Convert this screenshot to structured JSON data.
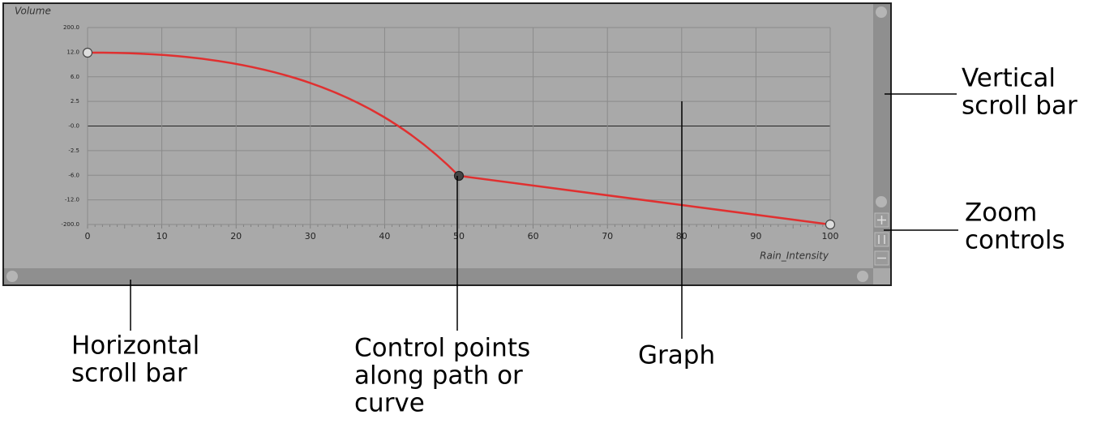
{
  "graph": {
    "y_axis_title": "Volume",
    "x_axis_title": "Rain_Intensity",
    "y_tick_labels": [
      "200.0",
      "12.0",
      "6.0",
      "2.5",
      "-0.0",
      "-2.5",
      "-6.0",
      "-12.0",
      "-200.0"
    ],
    "x_ticks": [
      0,
      10,
      20,
      30,
      40,
      50,
      60,
      70,
      80,
      90,
      100
    ]
  },
  "callouts": {
    "vertical_scroll_bar": [
      "Vertical",
      "scroll bar"
    ],
    "zoom_controls": [
      "Zoom",
      "controls"
    ],
    "horizontal_scroll_bar": [
      "Horizontal",
      "scroll bar"
    ],
    "control_points": [
      "Control points",
      "along path or",
      "curve"
    ],
    "graph": [
      "Graph"
    ]
  }
}
